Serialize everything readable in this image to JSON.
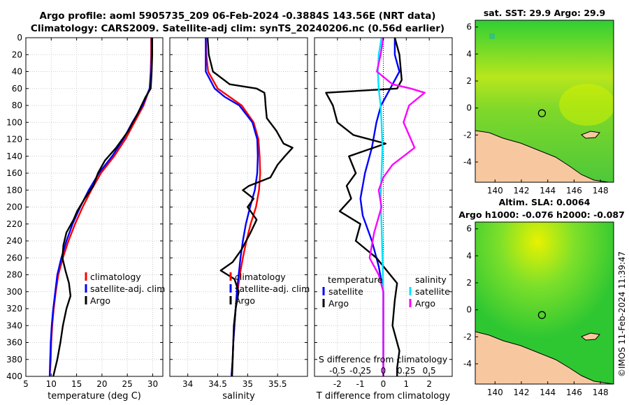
{
  "figure": {
    "title_line1": "Argo profile: aoml 5905735_209 06-Feb-2024 -0.3884S 143.56E (NRT data)",
    "title_line2": "Climatology: CARS2009. Satellite-adj clim: synTS_20240206.nc (0.56d earlier)",
    "credit": "©IMOS 11-Feb-2024 11:39:47"
  },
  "colors": {
    "climatology": "#ff0000",
    "satellite": "#0000ff",
    "argo": "#000000",
    "sal_satellite": "#00e5ff",
    "sal_argo": "#ff00ff",
    "land": "#f7c8a0",
    "sea_green": "#3fcf2e",
    "sea_yellow": "#c8ee00"
  },
  "chart_data": [
    {
      "type": "line",
      "name": "temperature-panel",
      "xlabel": "temperature (deg C)",
      "ylabel": "",
      "xlim": [
        5,
        32
      ],
      "ylim": [
        400,
        0
      ],
      "xticks": [
        5,
        10,
        15,
        20,
        25,
        30
      ],
      "yticks": [
        0,
        20,
        40,
        60,
        80,
        100,
        120,
        140,
        160,
        180,
        200,
        220,
        240,
        260,
        280,
        300,
        320,
        340,
        360,
        380,
        400
      ],
      "legend": [
        "climatology",
        "satellite-adj. clim",
        "Argo"
      ],
      "series": [
        {
          "name": "climatology",
          "color": "#ff0000",
          "depth": [
            0,
            20,
            40,
            60,
            80,
            100,
            120,
            140,
            160,
            180,
            200,
            220,
            240,
            260,
            280,
            300,
            320,
            340,
            360,
            380,
            400
          ],
          "values": [
            29.7,
            29.7,
            29.6,
            29.4,
            28.2,
            26.4,
            24.6,
            22.4,
            19.8,
            17.9,
            16.2,
            14.7,
            13.4,
            12.3,
            11.4,
            10.9,
            10.5,
            10.2,
            10.0,
            9.9,
            9.7
          ]
        },
        {
          "name": "satellite-adj. clim",
          "color": "#0000ff",
          "depth": [
            0,
            20,
            40,
            60,
            80,
            100,
            120,
            140,
            160,
            180,
            200,
            220,
            240,
            260,
            280,
            300,
            320,
            340,
            360,
            380,
            400
          ],
          "values": [
            29.8,
            29.8,
            29.7,
            29.4,
            28.0,
            26.0,
            24.2,
            22.0,
            19.4,
            17.4,
            15.7,
            14.2,
            13.0,
            12.0,
            11.2,
            10.8,
            10.4,
            10.1,
            9.9,
            9.8,
            9.7
          ]
        },
        {
          "name": "Argo",
          "color": "#000000",
          "depth": [
            0,
            20,
            40,
            60,
            70,
            90,
            110,
            130,
            145,
            160,
            175,
            190,
            205,
            215,
            230,
            245,
            260,
            275,
            290,
            305,
            320,
            340,
            360,
            380,
            400
          ],
          "values": [
            29.9,
            29.9,
            29.8,
            29.6,
            28.6,
            27.0,
            25.2,
            22.8,
            20.6,
            19.2,
            18.3,
            16.6,
            15.1,
            14.4,
            13.0,
            12.4,
            12.2,
            12.8,
            13.5,
            13.8,
            13.0,
            12.3,
            11.8,
            11.2,
            10.4
          ]
        }
      ]
    },
    {
      "type": "line",
      "name": "salinity-panel",
      "xlabel": "salinity",
      "ylabel": "",
      "xlim": [
        33.7,
        36.0
      ],
      "ylim": [
        400,
        0
      ],
      "xticks": [
        34,
        34.5,
        35,
        35.5
      ],
      "tick_labels": [
        "34",
        "34.5",
        "35",
        "35.5"
      ],
      "legend": [
        "climatology",
        "satellite-adj. clim",
        "Argo"
      ],
      "series": [
        {
          "name": "climatology",
          "color": "#ff0000",
          "depth": [
            0,
            20,
            40,
            60,
            70,
            80,
            100,
            120,
            140,
            160,
            180,
            200,
            220,
            240,
            260,
            280,
            300,
            320,
            340,
            360,
            380,
            400
          ],
          "values": [
            34.3,
            34.31,
            34.34,
            34.5,
            34.7,
            34.9,
            35.1,
            35.18,
            35.2,
            35.21,
            35.19,
            35.14,
            35.05,
            34.98,
            34.92,
            34.87,
            34.83,
            34.8,
            34.78,
            34.76,
            34.75,
            34.73
          ]
        },
        {
          "name": "satellite-adj. clim",
          "color": "#0000ff",
          "depth": [
            0,
            20,
            40,
            60,
            70,
            80,
            100,
            120,
            140,
            160,
            180,
            200,
            220,
            240,
            260,
            280,
            300,
            320,
            340,
            360,
            380,
            400
          ],
          "values": [
            34.3,
            34.3,
            34.3,
            34.45,
            34.62,
            34.86,
            35.08,
            35.16,
            35.17,
            35.16,
            35.12,
            35.04,
            34.97,
            34.92,
            34.88,
            34.85,
            34.82,
            34.8,
            34.78,
            34.76,
            34.75,
            34.73
          ]
        },
        {
          "name": "Argo",
          "color": "#000000",
          "depth": [
            0,
            20,
            40,
            55,
            60,
            65,
            70,
            80,
            95,
            110,
            125,
            130,
            140,
            150,
            165,
            175,
            180,
            190,
            200,
            215,
            230,
            250,
            265,
            275,
            285,
            300,
            320,
            340,
            360,
            380,
            400
          ],
          "values": [
            34.33,
            34.35,
            34.42,
            34.7,
            35.15,
            35.28,
            35.29,
            35.3,
            35.32,
            35.48,
            35.6,
            35.75,
            35.62,
            35.5,
            35.38,
            35.02,
            34.92,
            35.1,
            35.0,
            35.15,
            35.05,
            34.9,
            34.75,
            34.55,
            34.78,
            34.85,
            34.8,
            34.77,
            34.76,
            34.75,
            34.74
          ]
        }
      ]
    },
    {
      "type": "line",
      "name": "difference-panel",
      "xlabel": "T difference from climatology",
      "top_axis_label": "S difference from climatology",
      "ylabel": "",
      "xlim": [
        -3,
        3
      ],
      "ylim": [
        400,
        0
      ],
      "xticks": [
        -2,
        -1,
        0,
        1,
        2
      ],
      "top_ticks": [
        "-0.5",
        "-0.25",
        "0",
        "0.25",
        "0.5"
      ],
      "top_tick_values": [
        -0.5,
        -0.25,
        0,
        0.25,
        0.5
      ],
      "top_xlim": [
        -0.75,
        0.75
      ],
      "legend_temperature_title": "temperature",
      "legend_salinity_title": "salinity",
      "legend": [
        "satellite",
        "Argo",
        "satellite",
        "Argo"
      ],
      "series": [
        {
          "name": "temperature satellite",
          "color": "#0000ff",
          "depth": [
            0,
            20,
            40,
            60,
            80,
            100,
            130,
            160,
            190,
            210,
            240,
            270,
            300,
            340,
            380,
            400
          ],
          "values": [
            0.5,
            0.5,
            0.7,
            0.3,
            -0.1,
            -0.3,
            -0.5,
            -0.8,
            -1.0,
            -0.9,
            -0.5,
            -0.2,
            0.0,
            0.0,
            0.0,
            0.0
          ]
        },
        {
          "name": "temperature Argo",
          "color": "#000000",
          "depth": [
            0,
            20,
            50,
            60,
            65,
            80,
            100,
            115,
            125,
            140,
            160,
            175,
            190,
            205,
            220,
            240,
            260,
            290,
            310,
            340,
            370,
            390,
            400
          ],
          "values": [
            0.5,
            0.7,
            0.8,
            0.6,
            -2.5,
            -2.2,
            -2.0,
            -1.3,
            0.1,
            -1.5,
            -1.2,
            -1.6,
            -1.4,
            -1.9,
            -1.0,
            -1.2,
            -0.3,
            0.6,
            0.5,
            0.4,
            0.7,
            0.6,
            0.6
          ]
        },
        {
          "name": "salinity satellite",
          "color": "#00e5ff",
          "depth": [
            0,
            20,
            40,
            60,
            80,
            100,
            130,
            160,
            190,
            220,
            260,
            300,
            340,
            400
          ],
          "values": [
            -0.02,
            -0.05,
            -0.06,
            -0.05,
            -0.03,
            -0.02,
            -0.01,
            -0.02,
            -0.03,
            -0.02,
            -0.01,
            0.0,
            0.0,
            0.0
          ]
        },
        {
          "name": "salinity Argo",
          "color": "#ff00ff",
          "depth": [
            0,
            20,
            40,
            55,
            60,
            65,
            80,
            100,
            115,
            130,
            140,
            150,
            165,
            180,
            200,
            230,
            260,
            280,
            300,
            340,
            400
          ],
          "values": [
            0.0,
            -0.03,
            -0.07,
            0.1,
            0.3,
            0.45,
            0.28,
            0.22,
            0.28,
            0.34,
            0.22,
            0.1,
            0.0,
            -0.05,
            -0.02,
            -0.1,
            -0.15,
            -0.05,
            0.0,
            0.0,
            0.0
          ]
        }
      ]
    },
    {
      "type": "heatmap",
      "name": "sst-map",
      "title": "sat. SST: 29.9 Argo: 29.9",
      "xticks": [
        140,
        142,
        144,
        146,
        148
      ],
      "yticks": [
        6,
        4,
        2,
        0,
        -2,
        -4
      ],
      "xlim": [
        138.5,
        149
      ],
      "ylim": [
        -5.5,
        6.5
      ],
      "argo_position": {
        "lon": 143.56,
        "lat": -0.3884
      }
    },
    {
      "type": "heatmap",
      "name": "sla-map",
      "title": "Altim. SLA: 0.0064",
      "subtitle": "Argo h1000: -0.076 h2000: -0.087",
      "xticks": [
        140,
        142,
        144,
        146,
        148
      ],
      "yticks": [
        6,
        4,
        2,
        0,
        -2,
        -4
      ],
      "xlim": [
        138.5,
        149
      ],
      "ylim": [
        -5.5,
        6.5
      ],
      "argo_position": {
        "lon": 143.56,
        "lat": -0.3884
      }
    }
  ]
}
